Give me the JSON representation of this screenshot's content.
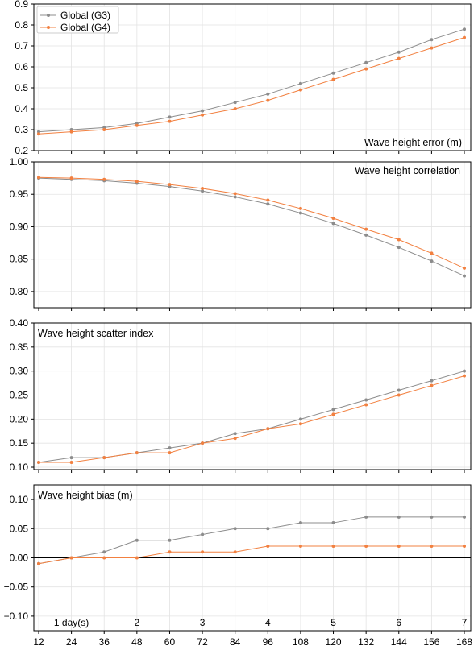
{
  "chart_data": [
    {
      "type": "line",
      "title": "Wave height error (m)",
      "x": [
        12,
        24,
        36,
        48,
        60,
        72,
        84,
        96,
        108,
        120,
        132,
        144,
        156,
        168
      ],
      "ylim": [
        0.2,
        0.9
      ],
      "yticks": [
        0.2,
        0.3,
        0.4,
        0.5,
        0.6,
        0.7,
        0.8,
        0.9
      ],
      "ytick_labels": [
        "0.2",
        "0.3",
        "0.4",
        "0.5",
        "0.6",
        "0.7",
        "0.8",
        "0.9"
      ],
      "grid": true,
      "legend": "top-left",
      "series": [
        {
          "name": "Global (G3)",
          "color": "#8c8c8c",
          "values": [
            0.29,
            0.3,
            0.31,
            0.33,
            0.36,
            0.39,
            0.43,
            0.47,
            0.52,
            0.57,
            0.62,
            0.67,
            0.73,
            0.78
          ]
        },
        {
          "name": "Global (G4)",
          "color": "#f28040",
          "values": [
            0.28,
            0.29,
            0.3,
            0.32,
            0.34,
            0.37,
            0.4,
            0.44,
            0.49,
            0.54,
            0.59,
            0.64,
            0.69,
            0.74
          ]
        }
      ]
    },
    {
      "type": "line",
      "title": "Wave height correlation",
      "x": [
        12,
        24,
        36,
        48,
        60,
        72,
        84,
        96,
        108,
        120,
        132,
        144,
        156,
        168
      ],
      "ylim": [
        0.775,
        1.0
      ],
      "yticks": [
        0.8,
        0.85,
        0.9,
        0.95,
        1.0
      ],
      "ytick_labels": [
        "0.80",
        "0.85",
        "0.90",
        "0.95",
        "1.00"
      ],
      "grid": true,
      "series": [
        {
          "name": "Global (G3)",
          "color": "#8c8c8c",
          "values": [
            0.975,
            0.973,
            0.971,
            0.967,
            0.962,
            0.955,
            0.946,
            0.935,
            0.921,
            0.905,
            0.887,
            0.868,
            0.847,
            0.824
          ]
        },
        {
          "name": "Global (G4)",
          "color": "#f28040",
          "values": [
            0.976,
            0.975,
            0.973,
            0.97,
            0.965,
            0.959,
            0.951,
            0.941,
            0.928,
            0.913,
            0.896,
            0.88,
            0.859,
            0.836
          ]
        }
      ]
    },
    {
      "type": "line",
      "title": "Wave height scatter index",
      "x": [
        12,
        24,
        36,
        48,
        60,
        72,
        84,
        96,
        108,
        120,
        132,
        144,
        156,
        168
      ],
      "ylim": [
        0.095,
        0.4
      ],
      "yticks": [
        0.1,
        0.15,
        0.2,
        0.25,
        0.3,
        0.35,
        0.4
      ],
      "ytick_labels": [
        "0.10",
        "0.15",
        "0.20",
        "0.25",
        "0.30",
        "0.35",
        "0.40"
      ],
      "grid": true,
      "series": [
        {
          "name": "Global (G3)",
          "color": "#8c8c8c",
          "values": [
            0.11,
            0.12,
            0.12,
            0.13,
            0.14,
            0.15,
            0.17,
            0.18,
            0.2,
            0.22,
            0.24,
            0.26,
            0.28,
            0.3
          ]
        },
        {
          "name": "Global (G4)",
          "color": "#f28040",
          "values": [
            0.11,
            0.11,
            0.12,
            0.13,
            0.13,
            0.15,
            0.16,
            0.18,
            0.19,
            0.21,
            0.23,
            0.25,
            0.27,
            0.29
          ]
        }
      ]
    },
    {
      "type": "line",
      "title": "Wave height bias (m)",
      "x": [
        12,
        24,
        36,
        48,
        60,
        72,
        84,
        96,
        108,
        120,
        132,
        144,
        156,
        168
      ],
      "ylim": [
        -0.125,
        0.125
      ],
      "yticks": [
        -0.1,
        -0.05,
        0.0,
        0.05,
        0.1
      ],
      "ytick_labels": [
        "−0.10",
        "−0.05",
        "0.00",
        "0.05",
        "0.10"
      ],
      "zero_line": true,
      "grid": true,
      "xtick_labels": [
        "12",
        "24",
        "36",
        "48",
        "60",
        "72",
        "84",
        "96",
        "108",
        "120",
        "132",
        "144",
        "156",
        "168"
      ],
      "day_labels": [
        {
          "x": 24,
          "label": "1 day(s)"
        },
        {
          "x": 48,
          "label": "2"
        },
        {
          "x": 72,
          "label": "3"
        },
        {
          "x": 96,
          "label": "4"
        },
        {
          "x": 120,
          "label": "5"
        },
        {
          "x": 144,
          "label": "6"
        },
        {
          "x": 168,
          "label": "7"
        }
      ],
      "series": [
        {
          "name": "Global (G3)",
          "color": "#8c8c8c",
          "values": [
            -0.01,
            0.0,
            0.01,
            0.03,
            0.03,
            0.04,
            0.05,
            0.05,
            0.06,
            0.06,
            0.07,
            0.07,
            0.07,
            0.07
          ]
        },
        {
          "name": "Global (G4)",
          "color": "#f28040",
          "values": [
            -0.01,
            0.0,
            0.0,
            0.0,
            0.01,
            0.01,
            0.01,
            0.02,
            0.02,
            0.02,
            0.02,
            0.02,
            0.02,
            0.02
          ]
        }
      ]
    }
  ]
}
